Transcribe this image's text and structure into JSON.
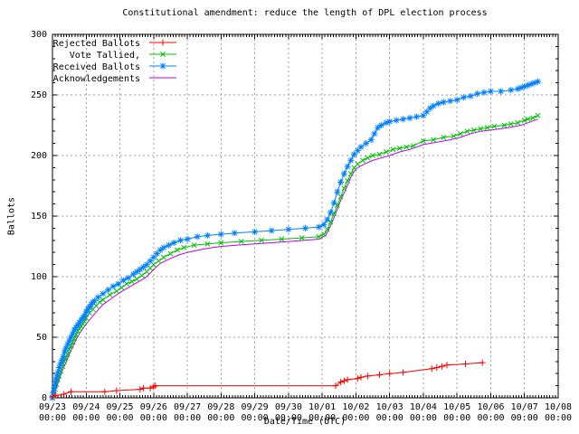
{
  "chart_data": {
    "type": "line",
    "title": "Constitutional amendment: reduce the length of DPL election process",
    "xlabel": "Date/Time (UTC)",
    "ylabel": "Ballots",
    "x_range_days": [
      0,
      15
    ],
    "ylim": [
      0,
      300
    ],
    "y_ticks": [
      0,
      50,
      100,
      150,
      200,
      250,
      300
    ],
    "y_minor_step": 10,
    "x_minor_per_day": 12,
    "grid": true,
    "grid_color": "#9e9e9e",
    "legend_position": "top-left",
    "x_ticks": [
      {
        "date": "09/23",
        "time": "00:00"
      },
      {
        "date": "09/24",
        "time": "00:00"
      },
      {
        "date": "09/25",
        "time": "00:00"
      },
      {
        "date": "09/26",
        "time": "00:00"
      },
      {
        "date": "09/27",
        "time": "00:00"
      },
      {
        "date": "09/28",
        "time": "00:00"
      },
      {
        "date": "09/29",
        "time": "00:00"
      },
      {
        "date": "09/30",
        "time": "00:00"
      },
      {
        "date": "10/01",
        "time": "00:00"
      },
      {
        "date": "10/02",
        "time": "00:00"
      },
      {
        "date": "10/03",
        "time": "00:00"
      },
      {
        "date": "10/04",
        "time": "00:00"
      },
      {
        "date": "10/05",
        "time": "00:00"
      },
      {
        "date": "10/06",
        "time": "00:00"
      },
      {
        "date": "10/07",
        "time": "00:00"
      },
      {
        "date": "10/08",
        "time": "00:00"
      }
    ],
    "draw_order": [
      "Acknowledgements",
      "Vote Tallied,",
      "Received Ballots",
      "Rejected Ballots"
    ],
    "series": [
      {
        "name": "Rejected Ballots",
        "color": "#ff0000",
        "marker": "plus",
        "points": [
          [
            0,
            1
          ],
          [
            0.1,
            2
          ],
          [
            0.33,
            3
          ],
          [
            0.55,
            5
          ],
          [
            1.55,
            5
          ],
          [
            1.9,
            6
          ],
          [
            2.6,
            7
          ],
          [
            2.7,
            8
          ],
          [
            2.9,
            8
          ],
          [
            3,
            9
          ],
          [
            3.05,
            10
          ],
          [
            8.4,
            10
          ],
          [
            8.55,
            13
          ],
          [
            8.65,
            14
          ],
          [
            8.75,
            15
          ],
          [
            9.05,
            16
          ],
          [
            9.15,
            17
          ],
          [
            9.35,
            18
          ],
          [
            9.7,
            19
          ],
          [
            10,
            20
          ],
          [
            10.4,
            21
          ],
          [
            11.25,
            24
          ],
          [
            11.4,
            25
          ],
          [
            11.55,
            26
          ],
          [
            11.7,
            27
          ],
          [
            12.25,
            28
          ],
          [
            12.75,
            29
          ]
        ]
      },
      {
        "name": "Vote Tallied,",
        "color": "#00c000",
        "marker": "cross",
        "points": [
          [
            0,
            0
          ],
          [
            0.04,
            3
          ],
          [
            0.08,
            7
          ],
          [
            0.12,
            11
          ],
          [
            0.16,
            15
          ],
          [
            0.2,
            18
          ],
          [
            0.25,
            22
          ],
          [
            0.3,
            26
          ],
          [
            0.35,
            30
          ],
          [
            0.4,
            33
          ],
          [
            0.45,
            36
          ],
          [
            0.5,
            40
          ],
          [
            0.55,
            43
          ],
          [
            0.6,
            46
          ],
          [
            0.65,
            49
          ],
          [
            0.7,
            52
          ],
          [
            0.75,
            55
          ],
          [
            0.8,
            57
          ],
          [
            0.85,
            59
          ],
          [
            0.9,
            61
          ],
          [
            0.95,
            63
          ],
          [
            1,
            66
          ],
          [
            1.1,
            70
          ],
          [
            1.2,
            73
          ],
          [
            1.3,
            76
          ],
          [
            1.4,
            79
          ],
          [
            1.5,
            81
          ],
          [
            1.7,
            85
          ],
          [
            1.9,
            88
          ],
          [
            2.05,
            91
          ],
          [
            2.2,
            94
          ],
          [
            2.35,
            96
          ],
          [
            2.5,
            98
          ],
          [
            2.65,
            101
          ],
          [
            2.8,
            104
          ],
          [
            2.9,
            107
          ],
          [
            3,
            110
          ],
          [
            3.15,
            113
          ],
          [
            3.3,
            116
          ],
          [
            3.5,
            119
          ],
          [
            3.7,
            122
          ],
          [
            3.9,
            124
          ],
          [
            4.2,
            126
          ],
          [
            4.6,
            127
          ],
          [
            5,
            128
          ],
          [
            5.6,
            129
          ],
          [
            6.2,
            130
          ],
          [
            6.8,
            131
          ],
          [
            7.4,
            132
          ],
          [
            7.9,
            133
          ],
          [
            8.05,
            135
          ],
          [
            8.15,
            139
          ],
          [
            8.25,
            145
          ],
          [
            8.35,
            152
          ],
          [
            8.45,
            159
          ],
          [
            8.55,
            166
          ],
          [
            8.65,
            173
          ],
          [
            8.75,
            179
          ],
          [
            8.85,
            185
          ],
          [
            8.95,
            190
          ],
          [
            9.05,
            193
          ],
          [
            9.2,
            196
          ],
          [
            9.35,
            198
          ],
          [
            9.5,
            200
          ],
          [
            9.7,
            201
          ],
          [
            9.9,
            203
          ],
          [
            10.1,
            205
          ],
          [
            10.3,
            206
          ],
          [
            10.5,
            207
          ],
          [
            10.7,
            208
          ],
          [
            11,
            212
          ],
          [
            11.3,
            213
          ],
          [
            11.6,
            215
          ],
          [
            11.9,
            216
          ],
          [
            12.1,
            218
          ],
          [
            12.3,
            220
          ],
          [
            12.5,
            221
          ],
          [
            12.7,
            222
          ],
          [
            12.9,
            223
          ],
          [
            13.1,
            224
          ],
          [
            13.4,
            225
          ],
          [
            13.6,
            226
          ],
          [
            13.8,
            227
          ],
          [
            14,
            229
          ],
          [
            14.1,
            230
          ],
          [
            14.25,
            231
          ],
          [
            14.4,
            233
          ]
        ]
      },
      {
        "name": "Received Ballots",
        "color": "#0080ff",
        "marker": "star",
        "points": [
          [
            0,
            0
          ],
          [
            0.02,
            4
          ],
          [
            0.05,
            8
          ],
          [
            0.08,
            12
          ],
          [
            0.1,
            15
          ],
          [
            0.13,
            18
          ],
          [
            0.16,
            21
          ],
          [
            0.2,
            25
          ],
          [
            0.24,
            28
          ],
          [
            0.28,
            31
          ],
          [
            0.32,
            34
          ],
          [
            0.36,
            38
          ],
          [
            0.4,
            41
          ],
          [
            0.45,
            44
          ],
          [
            0.5,
            47
          ],
          [
            0.55,
            50
          ],
          [
            0.6,
            53
          ],
          [
            0.65,
            56
          ],
          [
            0.7,
            58
          ],
          [
            0.75,
            60
          ],
          [
            0.8,
            62
          ],
          [
            0.85,
            64
          ],
          [
            0.9,
            66
          ],
          [
            0.95,
            68
          ],
          [
            1,
            71
          ],
          [
            1.05,
            73
          ],
          [
            1.1,
            75
          ],
          [
            1.15,
            77
          ],
          [
            1.2,
            79
          ],
          [
            1.25,
            80
          ],
          [
            1.35,
            83
          ],
          [
            1.5,
            86
          ],
          [
            1.65,
            89
          ],
          [
            1.8,
            92
          ],
          [
            1.95,
            94
          ],
          [
            2.1,
            97
          ],
          [
            2.25,
            99
          ],
          [
            2.4,
            102
          ],
          [
            2.5,
            104
          ],
          [
            2.6,
            106
          ],
          [
            2.7,
            108
          ],
          [
            2.8,
            110
          ],
          [
            2.9,
            113
          ],
          [
            3,
            116
          ],
          [
            3.1,
            119
          ],
          [
            3.2,
            122
          ],
          [
            3.3,
            124
          ],
          [
            3.45,
            126
          ],
          [
            3.6,
            128
          ],
          [
            3.8,
            130
          ],
          [
            4,
            131
          ],
          [
            4.3,
            133
          ],
          [
            4.6,
            134
          ],
          [
            5,
            135
          ],
          [
            5.4,
            136
          ],
          [
            6,
            137
          ],
          [
            6.5,
            138
          ],
          [
            7,
            139
          ],
          [
            7.5,
            140
          ],
          [
            7.9,
            141
          ],
          [
            8.05,
            143
          ],
          [
            8.15,
            147
          ],
          [
            8.25,
            153
          ],
          [
            8.35,
            161
          ],
          [
            8.45,
            170
          ],
          [
            8.55,
            178
          ],
          [
            8.65,
            185
          ],
          [
            8.75,
            191
          ],
          [
            8.85,
            196
          ],
          [
            8.95,
            201
          ],
          [
            9.05,
            204
          ],
          [
            9.15,
            207
          ],
          [
            9.3,
            210
          ],
          [
            9.45,
            213
          ],
          [
            9.55,
            218
          ],
          [
            9.65,
            223
          ],
          [
            9.75,
            225
          ],
          [
            9.9,
            227
          ],
          [
            10,
            228
          ],
          [
            10.2,
            229
          ],
          [
            10.4,
            230
          ],
          [
            10.6,
            231
          ],
          [
            10.8,
            232
          ],
          [
            11,
            233
          ],
          [
            11.1,
            236
          ],
          [
            11.2,
            239
          ],
          [
            11.3,
            241
          ],
          [
            11.45,
            243
          ],
          [
            11.6,
            244
          ],
          [
            11.8,
            245
          ],
          [
            12,
            246
          ],
          [
            12.2,
            248
          ],
          [
            12.4,
            249
          ],
          [
            12.6,
            251
          ],
          [
            12.8,
            252
          ],
          [
            13,
            253
          ],
          [
            13.3,
            253
          ],
          [
            13.6,
            254
          ],
          [
            13.8,
            255
          ],
          [
            13.9,
            256
          ],
          [
            14,
            257
          ],
          [
            14.1,
            258
          ],
          [
            14.2,
            259
          ],
          [
            14.3,
            260
          ],
          [
            14.4,
            261
          ]
        ]
      },
      {
        "name": "Acknowledgements",
        "color": "#bb00ee",
        "marker": "none",
        "points": [
          [
            0,
            0
          ],
          [
            0.05,
            3
          ],
          [
            0.1,
            7
          ],
          [
            0.15,
            11
          ],
          [
            0.2,
            15
          ],
          [
            0.25,
            19
          ],
          [
            0.3,
            23
          ],
          [
            0.4,
            29
          ],
          [
            0.5,
            36
          ],
          [
            0.6,
            42
          ],
          [
            0.7,
            48
          ],
          [
            0.8,
            53
          ],
          [
            0.9,
            57
          ],
          [
            1,
            61
          ],
          [
            1.15,
            66
          ],
          [
            1.3,
            71
          ],
          [
            1.5,
            77
          ],
          [
            1.75,
            82
          ],
          [
            2,
            87
          ],
          [
            2.25,
            91
          ],
          [
            2.5,
            95
          ],
          [
            2.75,
            99
          ],
          [
            2.9,
            103
          ],
          [
            3,
            106
          ],
          [
            3.2,
            111
          ],
          [
            3.5,
            115
          ],
          [
            3.75,
            118
          ],
          [
            4,
            120
          ],
          [
            4.5,
            123
          ],
          [
            5,
            125
          ],
          [
            6,
            127
          ],
          [
            7,
            129
          ],
          [
            7.9,
            131
          ],
          [
            8.1,
            134
          ],
          [
            8.25,
            142
          ],
          [
            8.4,
            152
          ],
          [
            8.55,
            163
          ],
          [
            8.7,
            172
          ],
          [
            8.85,
            182
          ],
          [
            8.95,
            187
          ],
          [
            9.05,
            190
          ],
          [
            9.25,
            193
          ],
          [
            9.5,
            196
          ],
          [
            9.75,
            198
          ],
          [
            10,
            200
          ],
          [
            10.3,
            203
          ],
          [
            10.6,
            205
          ],
          [
            11,
            209
          ],
          [
            11.4,
            211
          ],
          [
            11.8,
            213
          ],
          [
            12.1,
            215
          ],
          [
            12.4,
            218
          ],
          [
            12.7,
            220
          ],
          [
            13,
            221
          ],
          [
            13.5,
            223
          ],
          [
            13.9,
            225
          ],
          [
            14.1,
            227
          ],
          [
            14.4,
            230
          ]
        ]
      }
    ]
  }
}
